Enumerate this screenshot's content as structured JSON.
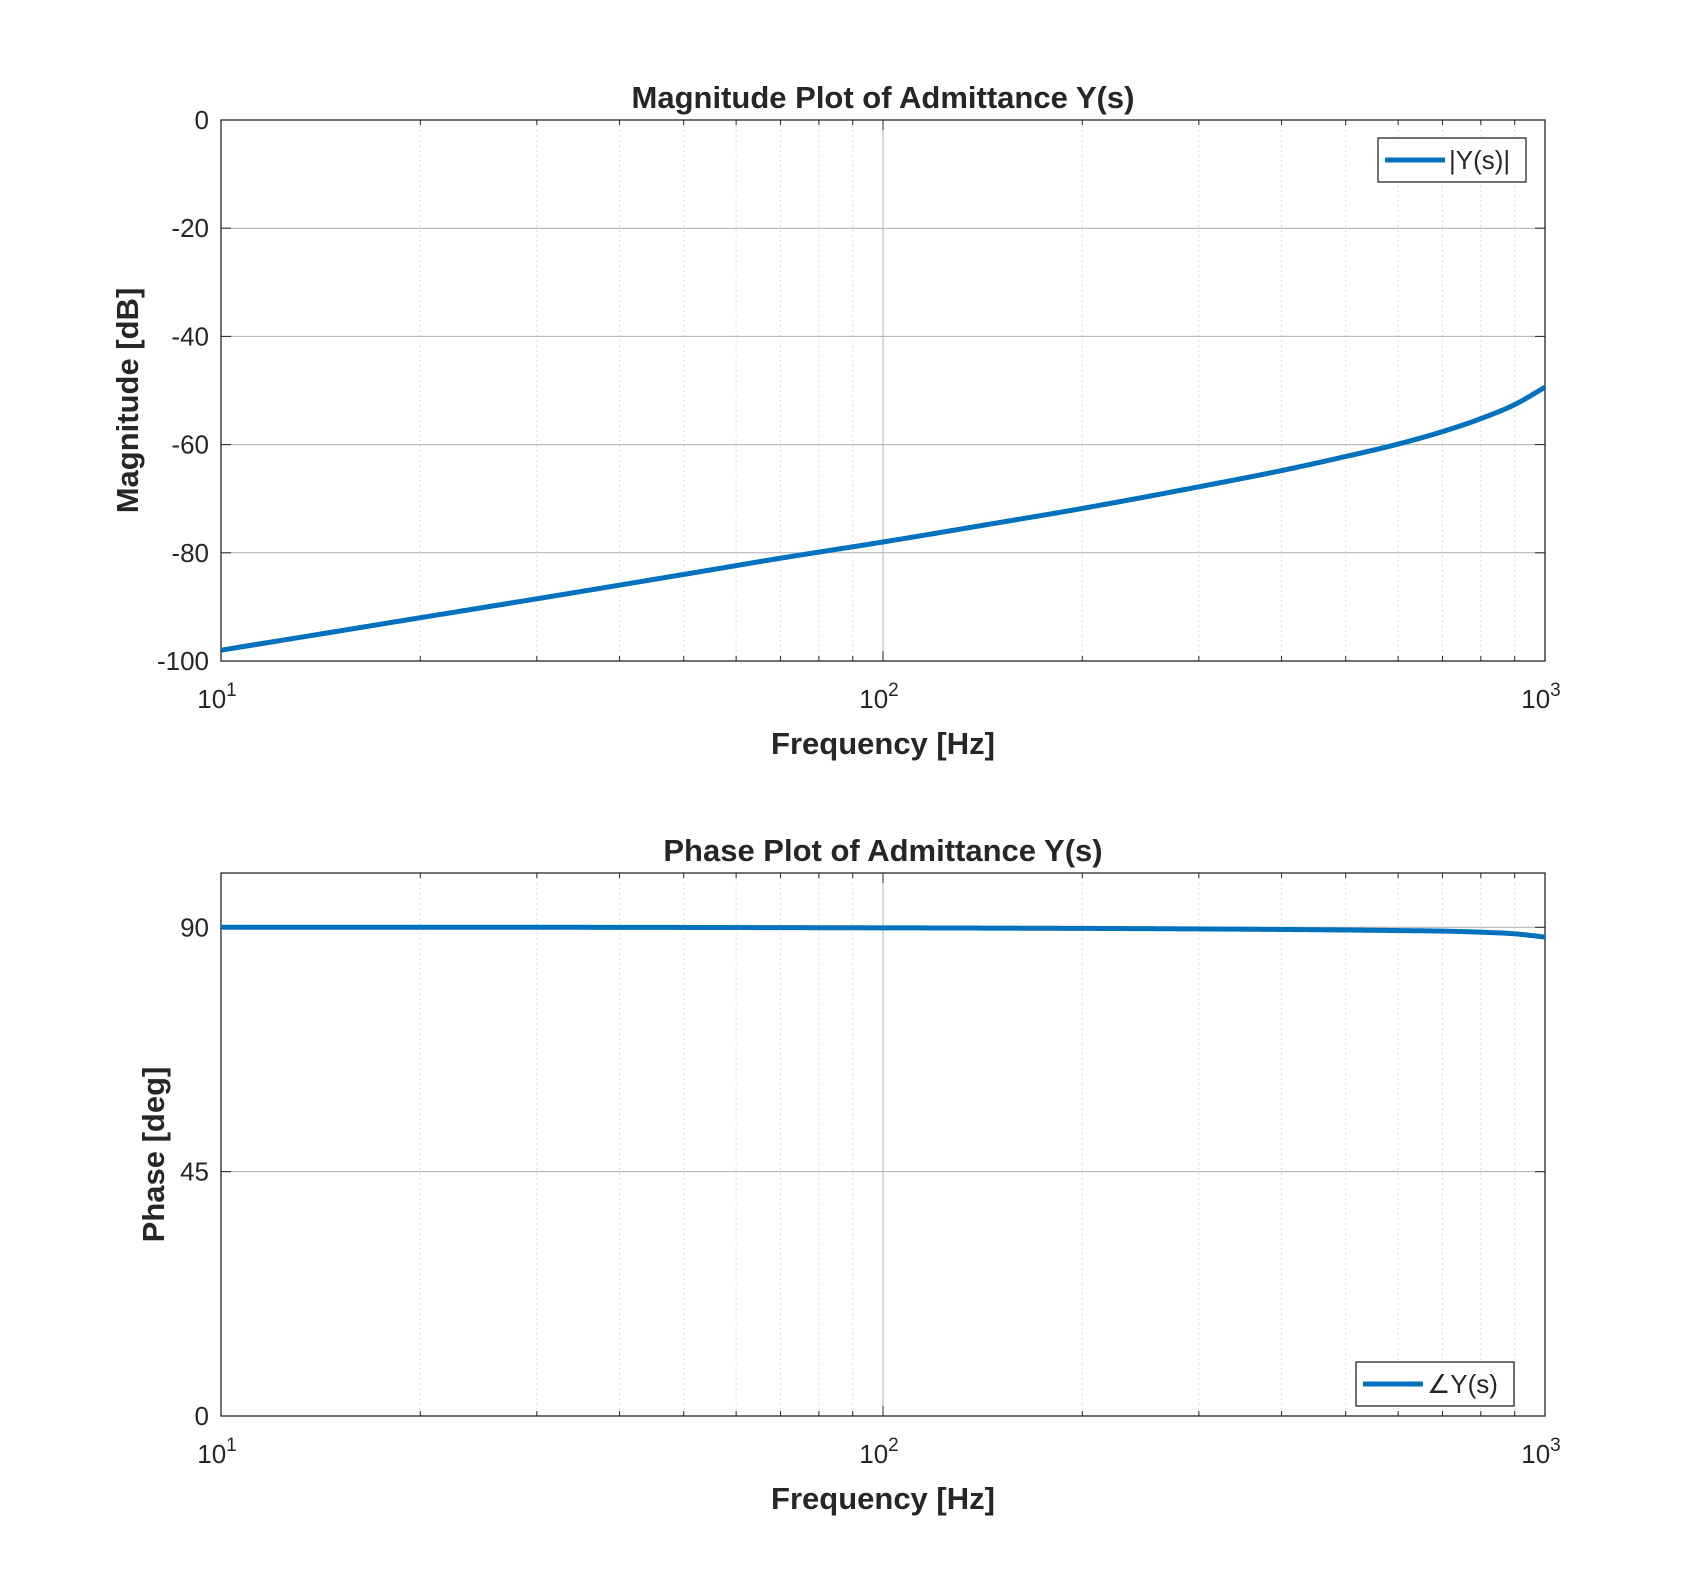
{
  "chart_data": [
    {
      "type": "line",
      "title": "Magnitude Plot of Admittance Y(s)",
      "xlabel": "Frequency [Hz]",
      "ylabel": "Magnitude [dB]",
      "xscale": "log",
      "xlim": [
        10,
        1000
      ],
      "ylim": [
        -100,
        0
      ],
      "xticks": [
        {
          "value": 10,
          "base": "10",
          "exp": "1"
        },
        {
          "value": 100,
          "base": "10",
          "exp": "2"
        },
        {
          "value": 1000,
          "base": "10",
          "exp": "3"
        }
      ],
      "yticks": [
        {
          "value": 0,
          "label": "0"
        },
        {
          "value": -20,
          "label": "-20"
        },
        {
          "value": -40,
          "label": "-40"
        },
        {
          "value": -60,
          "label": "-60"
        },
        {
          "value": -80,
          "label": "-80"
        },
        {
          "value": -100,
          "label": "-100"
        }
      ],
      "grid": true,
      "minor_grid": true,
      "legend_position": "top-right",
      "series": [
        {
          "name": "|Y(s)|",
          "color": "#0072bd",
          "x": [
            10,
            15,
            20,
            30,
            50,
            70,
            100,
            150,
            200,
            300,
            400,
            500,
            600,
            700,
            800,
            900,
            1000
          ],
          "y": [
            -98,
            -94.5,
            -92,
            -88.5,
            -84,
            -81,
            -78,
            -74.4,
            -71.8,
            -67.8,
            -64.8,
            -62.2,
            -59.9,
            -57.6,
            -55.2,
            -52.6,
            -49.4
          ]
        }
      ]
    },
    {
      "type": "line",
      "title": "Phase Plot of  Admittance Y(s)",
      "xlabel": "Frequency [Hz]",
      "ylabel": "Phase [deg]",
      "xscale": "log",
      "xlim": [
        10,
        1000
      ],
      "ylim": [
        0,
        100
      ],
      "xticks": [
        {
          "value": 10,
          "base": "10",
          "exp": "1"
        },
        {
          "value": 100,
          "base": "10",
          "exp": "2"
        },
        {
          "value": 1000,
          "base": "10",
          "exp": "3"
        }
      ],
      "yticks": [
        {
          "value": 0,
          "label": "0"
        },
        {
          "value": 45,
          "label": "45"
        },
        {
          "value": 90,
          "label": "90"
        }
      ],
      "grid": true,
      "minor_grid": true,
      "legend_position": "bottom-right",
      "series": [
        {
          "name": "∠Y(s)",
          "color": "#0072bd",
          "x": [
            10,
            30,
            100,
            200,
            300,
            400,
            500,
            600,
            700,
            800,
            900,
            1000
          ],
          "y": [
            90,
            90,
            89.9,
            89.8,
            89.7,
            89.6,
            89.5,
            89.4,
            89.3,
            89.1,
            88.8,
            88.2
          ]
        }
      ]
    }
  ]
}
